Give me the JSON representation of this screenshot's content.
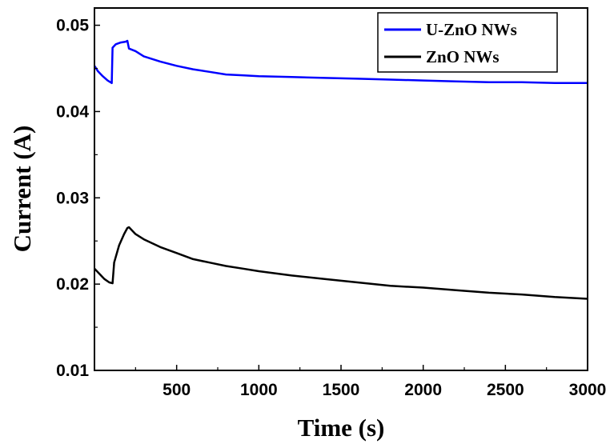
{
  "chart_data": {
    "type": "line",
    "xlabel": "Time (s)",
    "ylabel": "Current (A)",
    "xlim": [
      0,
      3000
    ],
    "ylim": [
      0.01,
      0.052
    ],
    "x_ticks": [
      500,
      1000,
      1500,
      2000,
      2500,
      3000
    ],
    "x_tick_labels": [
      "500",
      "1000",
      "1500",
      "2000",
      "2500",
      "3000"
    ],
    "y_ticks": [
      0.01,
      0.02,
      0.03,
      0.04,
      0.05
    ],
    "y_tick_labels": [
      "0.01",
      "0.02",
      "0.03",
      "0.04",
      "0.05"
    ],
    "grid": false,
    "legend_position": "top-right",
    "series": [
      {
        "name": "U-ZnO NWs",
        "color": "#0000ff",
        "x": [
          0,
          20,
          50,
          80,
          105,
          110,
          130,
          160,
          190,
          200,
          210,
          250,
          300,
          400,
          500,
          600,
          700,
          800,
          900,
          1000,
          1200,
          1400,
          1600,
          1800,
          2000,
          2200,
          2400,
          2600,
          2800,
          3000
        ],
        "y": [
          0.0453,
          0.0447,
          0.0441,
          0.0436,
          0.0433,
          0.0474,
          0.0478,
          0.048,
          0.0481,
          0.0482,
          0.0473,
          0.047,
          0.0464,
          0.0458,
          0.0453,
          0.0449,
          0.0446,
          0.0443,
          0.0442,
          0.0441,
          0.044,
          0.0439,
          0.0438,
          0.0437,
          0.0436,
          0.0435,
          0.0434,
          0.0434,
          0.0433,
          0.0433
        ]
      },
      {
        "name": "ZnO NWs",
        "color": "#000000",
        "x": [
          0,
          30,
          60,
          90,
          110,
          120,
          150,
          180,
          200,
          210,
          250,
          300,
          400,
          500,
          600,
          700,
          800,
          900,
          1000,
          1200,
          1400,
          1600,
          1800,
          2000,
          2200,
          2400,
          2600,
          2800,
          3000
        ],
        "y": [
          0.0218,
          0.0212,
          0.0206,
          0.0202,
          0.0201,
          0.0225,
          0.0245,
          0.0258,
          0.0265,
          0.0266,
          0.0258,
          0.0252,
          0.0243,
          0.0236,
          0.0229,
          0.0225,
          0.0221,
          0.0218,
          0.0215,
          0.021,
          0.0206,
          0.0202,
          0.0198,
          0.0196,
          0.0193,
          0.019,
          0.0188,
          0.0185,
          0.0183
        ]
      }
    ]
  }
}
